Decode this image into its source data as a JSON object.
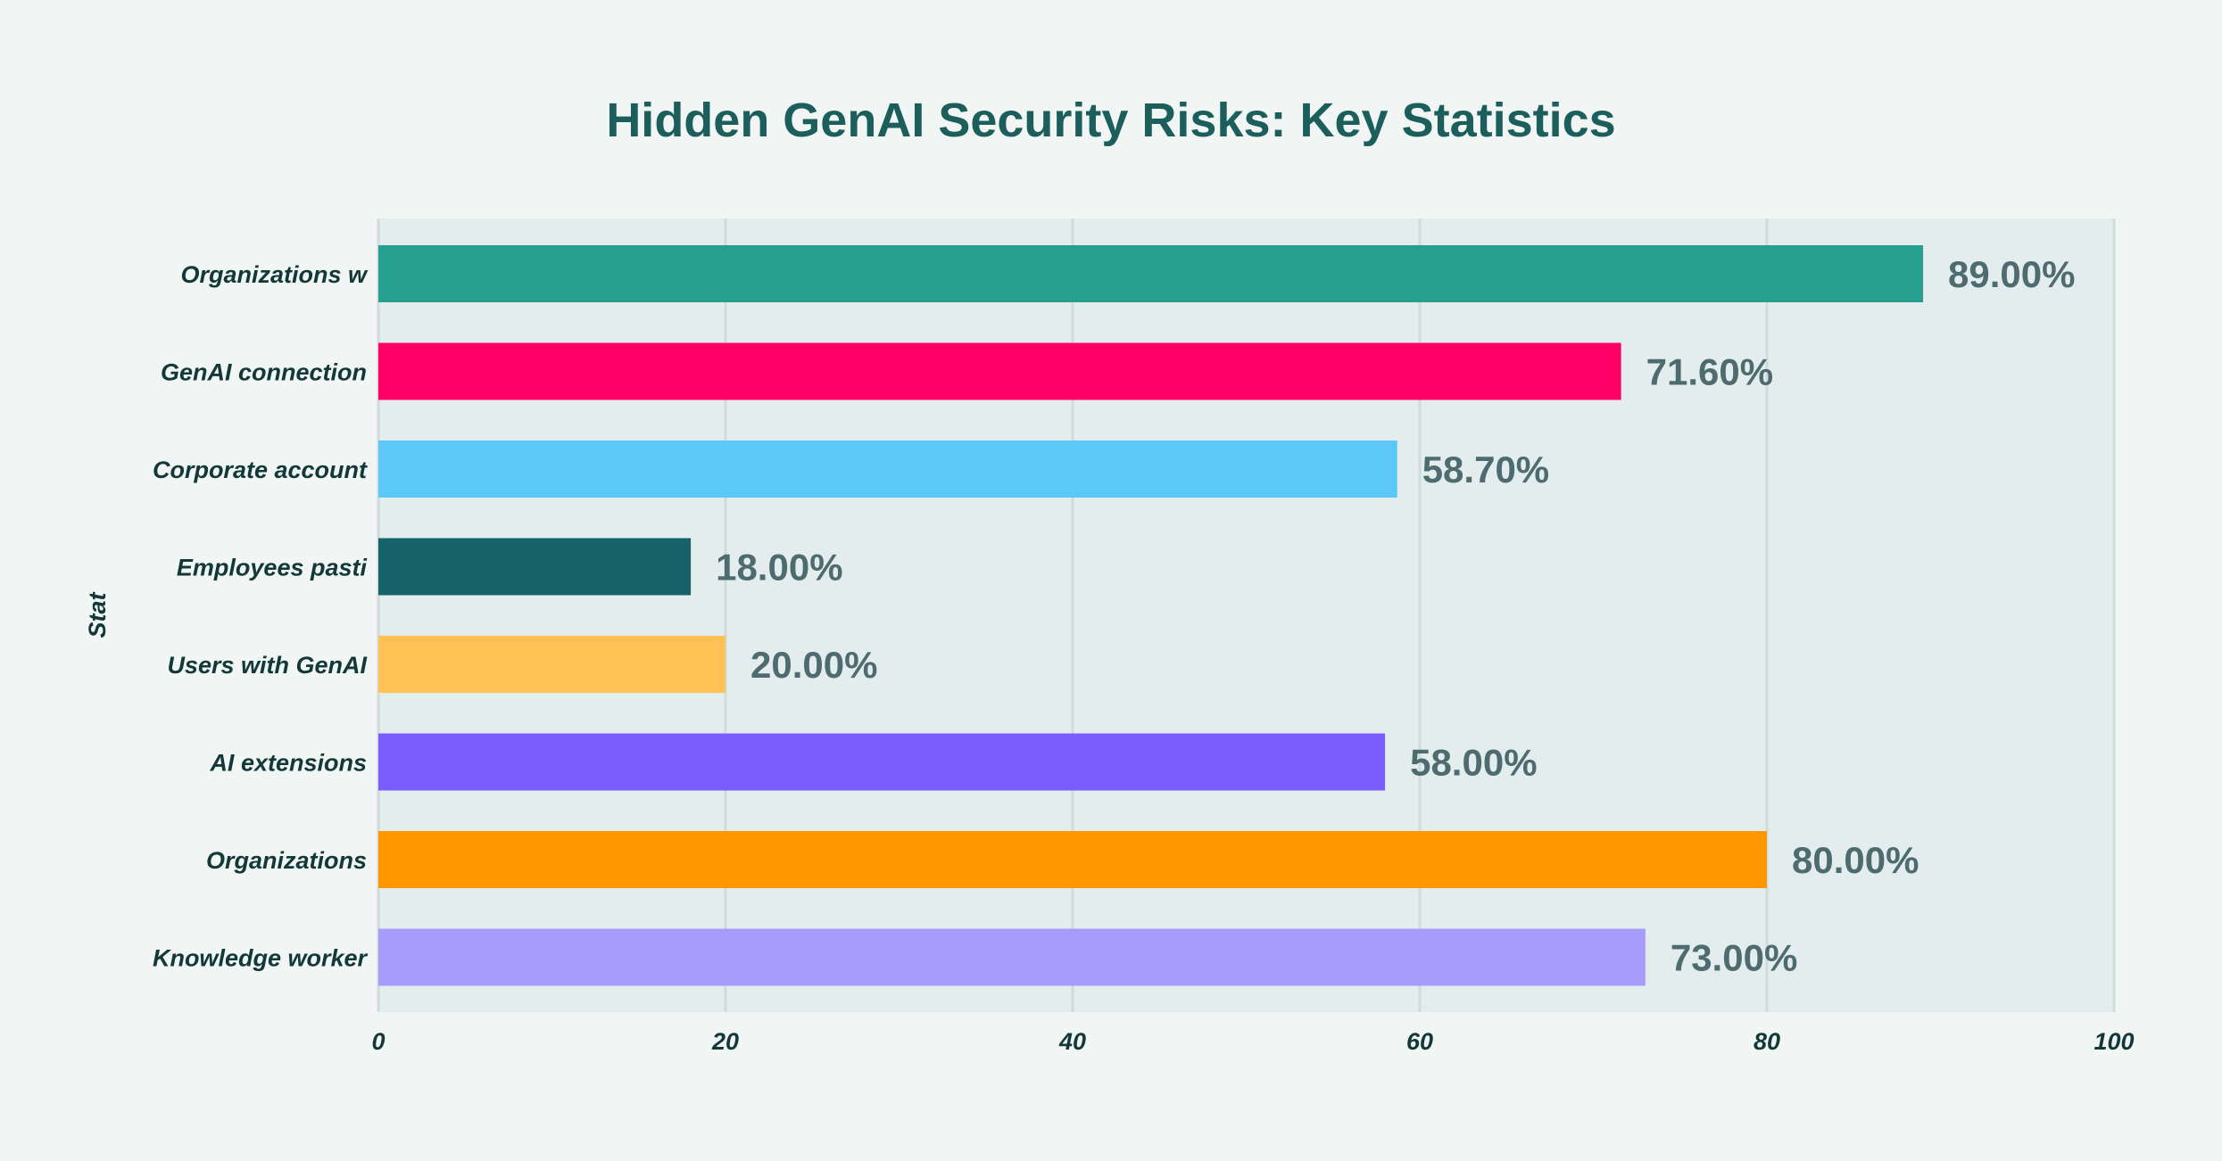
{
  "chart_data": {
    "type": "bar",
    "orientation": "horizontal",
    "title": "Hidden GenAI Security Risks: Key Statistics",
    "ylabel": "Stat",
    "xlabel": "",
    "xlim": [
      0,
      100
    ],
    "xticks": [
      "0",
      "20",
      "40",
      "60",
      "80",
      "100"
    ],
    "grid": true,
    "categories": [
      "Organizations w",
      "GenAI connection",
      "Corporate account",
      "Employees pasti",
      "Users with GenAI",
      "AI extensions",
      "Organizations",
      "Knowledge worker"
    ],
    "values": [
      89.0,
      71.6,
      58.7,
      18.0,
      20.0,
      58.0,
      80.0,
      73.0
    ],
    "value_labels": [
      "89.00%",
      "71.60%",
      "58.70%",
      "18.00%",
      "20.00%",
      "58.00%",
      "80.00%",
      "73.00%"
    ],
    "colors": [
      "#279f8e",
      "#ff0066",
      "#5bc8f8",
      "#166268",
      "#ffc155",
      "#7a5cff",
      "#ff9700",
      "#a89cfa"
    ],
    "background": "#f1f6f5",
    "plot_background": "#e4edee"
  }
}
